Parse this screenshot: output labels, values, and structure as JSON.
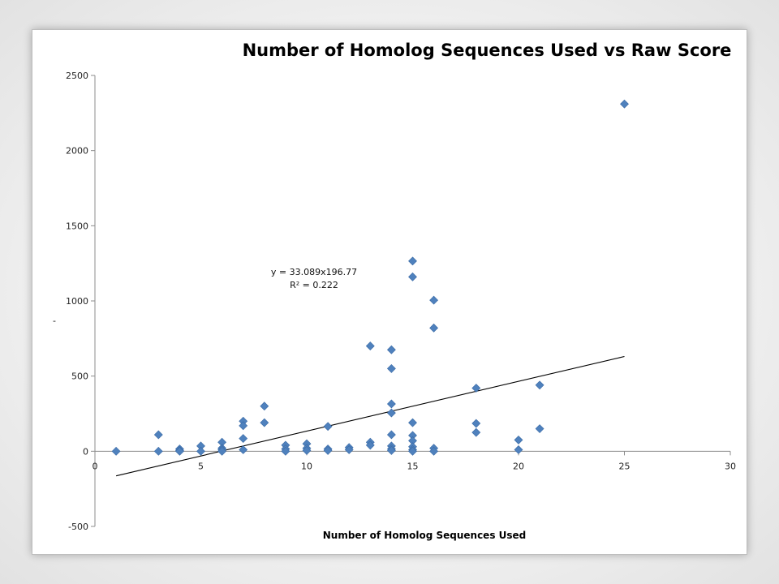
{
  "chart_data": {
    "type": "scatter",
    "title": "Number of Homolog Sequences Used vs Raw Score",
    "xlabel": "Number of Homolog Sequences Used",
    "ylabel": "-",
    "xlim": [
      0,
      30
    ],
    "ylim": [
      -500,
      2500
    ],
    "xticks": [
      0,
      5,
      10,
      15,
      20,
      25,
      30
    ],
    "yticks": [
      -500,
      0,
      500,
      1000,
      1500,
      2000,
      2500
    ],
    "grid": false,
    "legend": "none",
    "marker_color": "#4f81bd",
    "series": [
      {
        "marker": "diamond",
        "x": [
          1,
          3,
          3,
          4,
          4,
          4,
          5,
          5,
          6,
          6,
          6,
          6,
          7,
          7,
          7,
          7,
          8,
          8,
          9,
          9,
          9,
          10,
          10,
          10,
          11,
          11,
          11,
          12,
          12,
          13,
          13,
          13,
          14,
          14,
          14,
          14,
          14,
          14,
          14,
          14,
          15,
          15,
          15,
          15,
          15,
          15,
          15,
          15,
          16,
          16,
          16,
          16,
          18,
          18,
          18,
          20,
          20,
          21,
          21,
          25
        ],
        "y": [
          0,
          110,
          0,
          15,
          5,
          0,
          35,
          0,
          60,
          20,
          10,
          0,
          200,
          170,
          85,
          10,
          300,
          190,
          40,
          15,
          0,
          50,
          20,
          5,
          165,
          15,
          5,
          25,
          10,
          700,
          60,
          40,
          675,
          550,
          315,
          255,
          110,
          35,
          15,
          5,
          1265,
          1160,
          190,
          105,
          70,
          30,
          10,
          0,
          1005,
          820,
          20,
          0,
          420,
          185,
          125,
          75,
          10,
          440,
          150,
          2310
        ]
      }
    ],
    "trendline": {
      "x": [
        1,
        25
      ],
      "y": [
        -163.7,
        630.45
      ],
      "equation": "y = 33.089x196.77",
      "r_squared": "R² = 0.222"
    }
  }
}
